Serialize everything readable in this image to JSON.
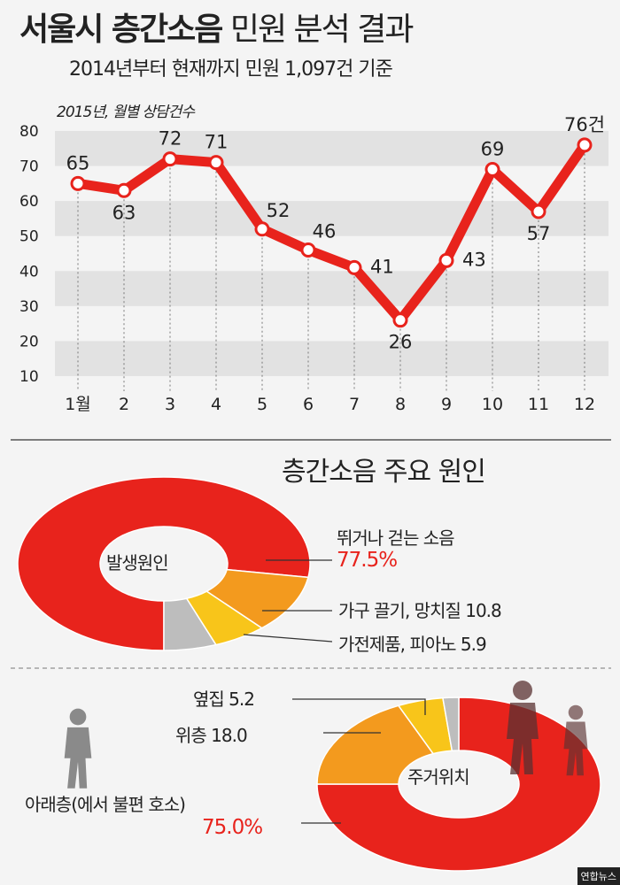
{
  "header": {
    "title_bold": "서울시 층간소음",
    "title_rest": "민원 분석 결과",
    "subtitle": "2014년부터 현재까지 민원 1,097건 기준"
  },
  "chart_data": [
    {
      "type": "line",
      "title": "2015년, 월별 상담건수",
      "xlabel": "",
      "ylabel": "",
      "categories": [
        "1월",
        "2",
        "3",
        "4",
        "5",
        "6",
        "7",
        "8",
        "9",
        "10",
        "11",
        "12"
      ],
      "values": [
        65,
        63,
        72,
        71,
        52,
        46,
        41,
        26,
        43,
        69,
        57,
        76
      ],
      "data_labels": [
        "65",
        "63",
        "72",
        "71",
        "52",
        "46",
        "41",
        "26",
        "43",
        "69",
        "57",
        "76건"
      ],
      "yticks": [
        "10",
        "20",
        "30",
        "40",
        "50",
        "60",
        "70",
        "80"
      ],
      "ylim": [
        10,
        80
      ],
      "grid": "alternating bands",
      "color": "#e8231c"
    },
    {
      "type": "pie",
      "title": "층간소음 주요 원인",
      "center_label": "발생원인",
      "slices": [
        {
          "label": "뛰거나 걷는 소음",
          "value": 77.5,
          "value_text": "77.5%",
          "color": "#e8231c"
        },
        {
          "label": "가구 끌기, 망치질 10.8",
          "value": 10.8,
          "color": "#f39a1e"
        },
        {
          "label": "가전제품, 피아노 5.9",
          "value": 5.9,
          "color": "#f8c51a"
        },
        {
          "label": "",
          "value": 5.8,
          "color": "#bdbdbd"
        }
      ]
    },
    {
      "type": "pie",
      "title": "",
      "center_label": "주거위치",
      "slices": [
        {
          "label": "아래층(에서 불편 호소)",
          "value": 75.0,
          "value_text": "75.0%",
          "color": "#e8231c"
        },
        {
          "label": "위층 18.0",
          "value": 18.0,
          "color": "#f39a1e"
        },
        {
          "label": "옆집 5.2",
          "value": 5.2,
          "color": "#f8c51a"
        },
        {
          "label": "",
          "value": 1.8,
          "color": "#bdbdbd"
        }
      ]
    }
  ],
  "credit": "연합뉴스"
}
